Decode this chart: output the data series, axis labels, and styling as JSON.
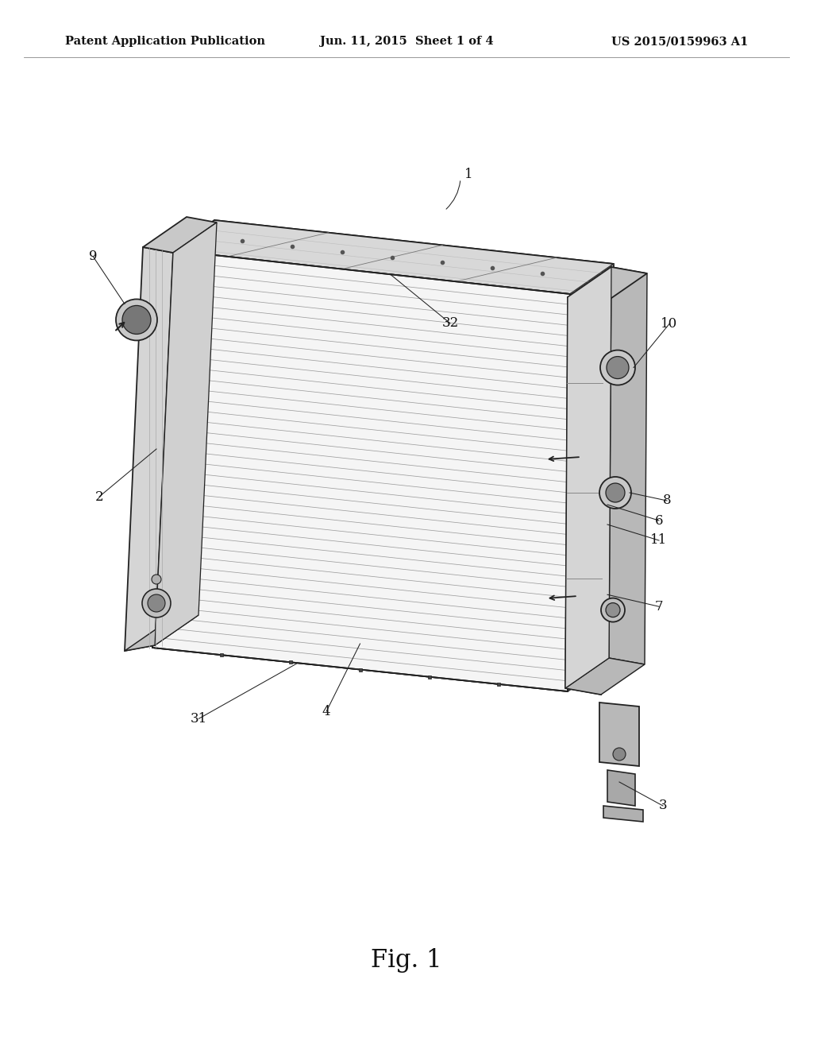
{
  "background_color": "#ffffff",
  "header_left": "Patent Application Publication",
  "header_center": "Jun. 11, 2015  Sheet 1 of 4",
  "header_right": "US 2015/0159963 A1",
  "header_fontsize": 10.5,
  "header_fontweight": "bold",
  "header_font": "DejaVu Serif",
  "figure_label": "Fig. 1",
  "figure_label_fontsize": 22,
  "figure_label_font": "DejaVu Serif",
  "text_color": "#111111",
  "line_color": "#222222",
  "label_fontsize": 12,
  "label_font": "DejaVu Serif",
  "n_fins": 38
}
